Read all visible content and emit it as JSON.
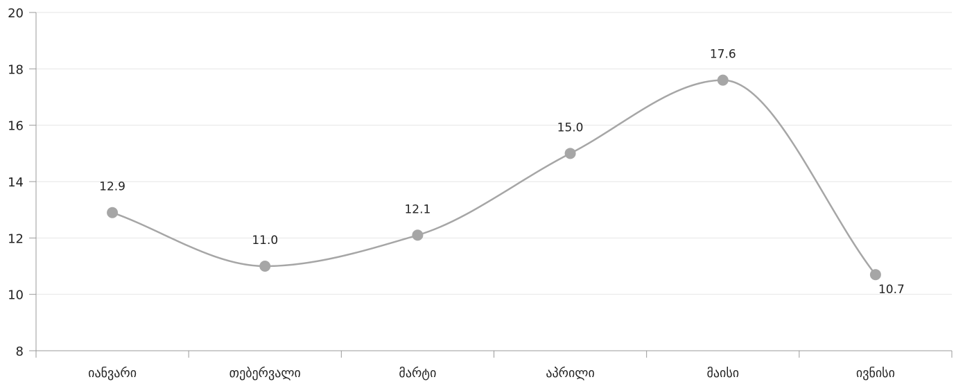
{
  "chart_data": {
    "type": "line",
    "categories": [
      "იანვარი",
      "თებერვალი",
      "მარტი",
      "აპრილი",
      "მაისი",
      "ივნისი"
    ],
    "values": [
      12.9,
      11.0,
      12.1,
      15.0,
      17.6,
      10.7
    ],
    "value_labels": [
      "12.9",
      "11.0",
      "12.1",
      "15.0",
      "17.6",
      "10.7"
    ],
    "ylim": [
      8,
      20
    ],
    "yticks": [
      8,
      10,
      12,
      14,
      16,
      18,
      20
    ],
    "title": "",
    "xlabel": "",
    "ylabel": "",
    "grid": true,
    "smooth": true,
    "colors": {
      "line": "#a6a6a6",
      "marker": "#a6a6a6"
    }
  }
}
